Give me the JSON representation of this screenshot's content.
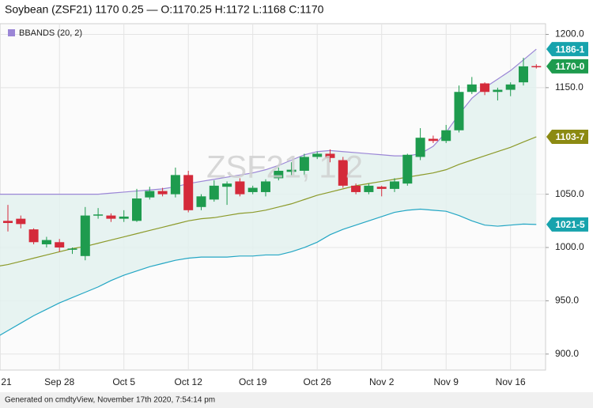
{
  "chart_data": {
    "type": "candlestick",
    "title": "Soybean (ZSF21) 1170 0.25 — O:1170.25 H:1172 L:1168 C:1170",
    "watermark": "ZSF21, 1 2",
    "legend": {
      "name": "BBANDS (20, 2)",
      "color": "#9b86d6"
    },
    "categories": [
      "21",
      null,
      null,
      null,
      null,
      "Sep 28",
      null,
      null,
      null,
      null,
      "Oct 5",
      null,
      null,
      null,
      null,
      "Oct 12",
      null,
      null,
      null,
      null,
      "Oct 19",
      null,
      null,
      null,
      null,
      "Oct 26",
      null,
      null,
      null,
      null,
      "Nov 2",
      null,
      null,
      null,
      null,
      "Nov 9",
      null,
      null,
      null,
      null,
      "Nov 16",
      null,
      null
    ],
    "open": [
      null,
      1025,
      1027,
      1017,
      1003,
      1005,
      998,
      992,
      1030,
      1030,
      1027,
      1025,
      1047,
      1053,
      1050,
      1068,
      1038,
      1045,
      1057,
      1062,
      1052,
      1052,
      1065,
      1071,
      1072,
      1085,
      1088,
      1082,
      1058,
      1052,
      1057,
      1055,
      1060,
      1085,
      1102,
      1100,
      1110,
      1146,
      1154,
      1146,
      1148,
      1155,
      1170.25
    ],
    "high": [
      null,
      1040,
      1030,
      1018,
      1010,
      1008,
      1000,
      1038,
      1037,
      1032,
      1035,
      1055,
      1057,
      1056,
      1075,
      1072,
      1050,
      1063,
      1062,
      1065,
      1058,
      1064,
      1075,
      1080,
      1088,
      1090,
      1092,
      1085,
      1060,
      1060,
      1058,
      1065,
      1088,
      1112,
      1105,
      1115,
      1152,
      1160,
      1155,
      1150,
      1155,
      1178,
      1172
    ],
    "low": [
      null,
      1015,
      1018,
      1003,
      1000,
      996,
      994,
      988,
      1027,
      1024,
      1024,
      1024,
      1045,
      1048,
      1047,
      1033,
      1035,
      1043,
      1040,
      1048,
      1050,
      1048,
      1063,
      1068,
      1068,
      1083,
      1080,
      1056,
      1050,
      1050,
      1048,
      1052,
      1058,
      1082,
      1098,
      1098,
      1108,
      1144,
      1143,
      1138,
      1142,
      1152,
      1168
    ],
    "close": [
      null,
      1023,
      1022,
      1005,
      1007,
      1000,
      999,
      1030,
      1031,
      1027,
      1029,
      1046,
      1053,
      1050,
      1068,
      1035,
      1048,
      1058,
      1060,
      1050,
      1056,
      1062,
      1072,
      1073,
      1085,
      1088,
      1084,
      1058,
      1052,
      1058,
      1055,
      1062,
      1087,
      1103,
      1100,
      1110,
      1146,
      1153,
      1146,
      1148,
      1153,
      1170,
      1170
    ],
    "up_color": "#1e9b4e",
    "down_color": "#d42a3a",
    "bands": [
      {
        "color": "#9b86d6",
        "values": [
          1050,
          1050,
          1050,
          1050,
          1050,
          1050,
          1050,
          1050,
          1050,
          1051,
          1052,
          1053,
          1054,
          1055,
          1057,
          1060,
          1062,
          1064,
          1066,
          1068,
          1070,
          1073,
          1077,
          1082,
          1087,
          1090,
          1091,
          1090,
          1089,
          1088,
          1087,
          1086,
          1086,
          1088,
          1095,
          1108,
          1125,
          1140,
          1150,
          1158,
          1166,
          1176,
          1186.125
        ]
      },
      {
        "color": "#8c9a2a",
        "values": [
          982,
          984,
          987,
          990,
          993,
          996,
          999,
          1001,
          1004,
          1007,
          1010,
          1013,
          1016,
          1019,
          1022,
          1025,
          1027,
          1028,
          1030,
          1032,
          1033,
          1035,
          1038,
          1041,
          1045,
          1049,
          1052,
          1055,
          1058,
          1060,
          1062,
          1064,
          1066,
          1068,
          1070,
          1073,
          1078,
          1082,
          1086,
          1090,
          1094,
          1099,
          1103.875
        ]
      },
      {
        "color": "#23a6c4",
        "values": [
          915,
          922,
          929,
          936,
          942,
          948,
          953,
          958,
          963,
          969,
          974,
          978,
          982,
          985,
          988,
          990,
          991,
          991,
          991,
          992,
          992,
          993,
          993,
          996,
          1000,
          1005,
          1012,
          1017,
          1021,
          1025,
          1029,
          1033,
          1035,
          1036,
          1035,
          1034,
          1030,
          1025,
          1021,
          1020,
          1021,
          1022,
          1021.625
        ]
      }
    ],
    "band_fill": "#e3f1ee",
    "ylim": [
      885,
      1210
    ],
    "yticks": [
      {
        "value": 900,
        "label": "900.0"
      },
      {
        "value": 950,
        "label": "950.0"
      },
      {
        "value": 1000,
        "label": "1000.0"
      },
      {
        "value": 1050,
        "label": "1050.0"
      },
      {
        "value": 1150,
        "label": "1150.0"
      },
      {
        "value": 1200,
        "label": "1200.0"
      }
    ],
    "price_labels": [
      {
        "value": 1186.125,
        "label": "1186-1",
        "color": "#17a3ad"
      },
      {
        "value": 1170,
        "label": "1170-0",
        "color": "#1e9b4e"
      },
      {
        "value": 1103.875,
        "label": "1103-7",
        "color": "#8c8a12"
      },
      {
        "value": 1021.625,
        "label": "1021-5",
        "color": "#17a3ad"
      }
    ],
    "grid": true
  },
  "footer": "Generated on cmdtyView, November 17th 2020, 7:54:14 pm"
}
